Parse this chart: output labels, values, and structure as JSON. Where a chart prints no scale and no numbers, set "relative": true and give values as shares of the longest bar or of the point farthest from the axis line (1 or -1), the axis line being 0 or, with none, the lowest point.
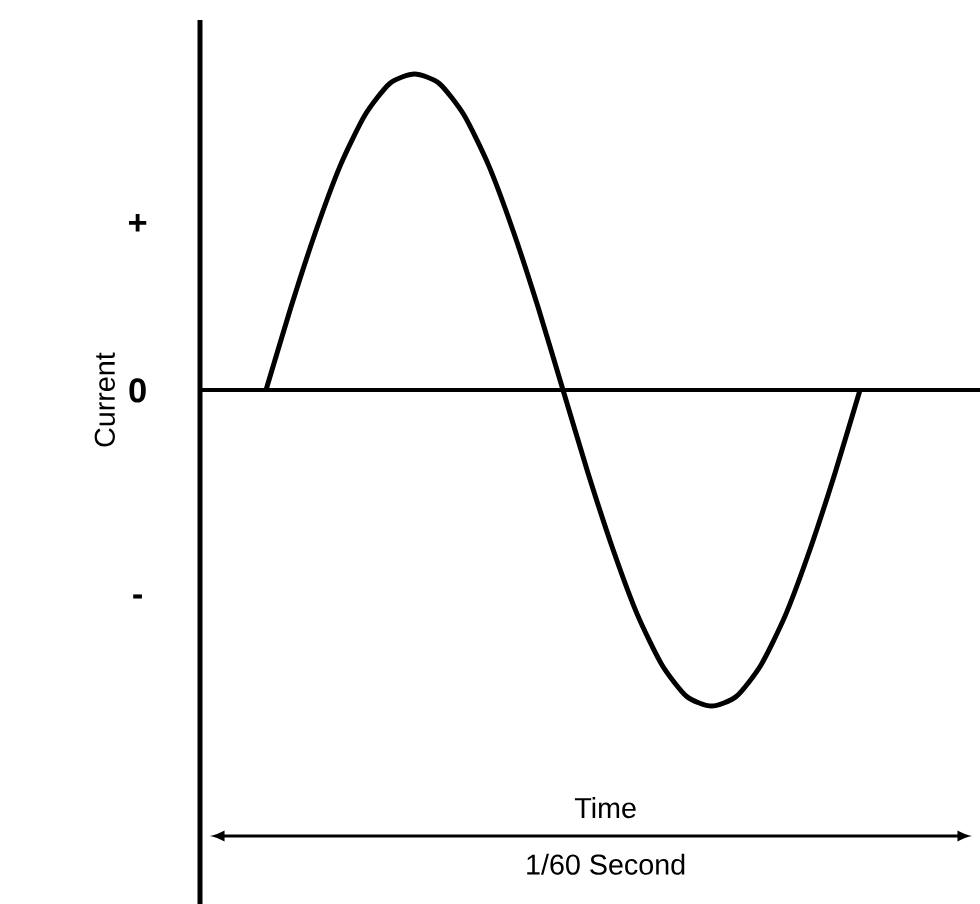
{
  "chart_data": {
    "type": "line",
    "relative": true,
    "ylabel": "Current",
    "xlabel": "Time",
    "color": "#000000",
    "categories": [
      null,
      null,
      null,
      null,
      null,
      null,
      null,
      null,
      null,
      null,
      null,
      null,
      null,
      null,
      null,
      null,
      null,
      null,
      null,
      null,
      null,
      null,
      null,
      null,
      null
    ],
    "values": [
      0,
      0.26,
      0.5,
      0.71,
      0.87,
      0.97,
      1,
      0.97,
      0.87,
      0.71,
      0.5,
      0.26,
      0,
      -0.26,
      -0.5,
      -0.71,
      -0.87,
      -0.97,
      -1,
      -0.97,
      -0.87,
      -0.71,
      -0.5,
      -0.26,
      0
    ],
    "annotations": [
      "+",
      "0",
      "-",
      "1/60 Second"
    ]
  }
}
